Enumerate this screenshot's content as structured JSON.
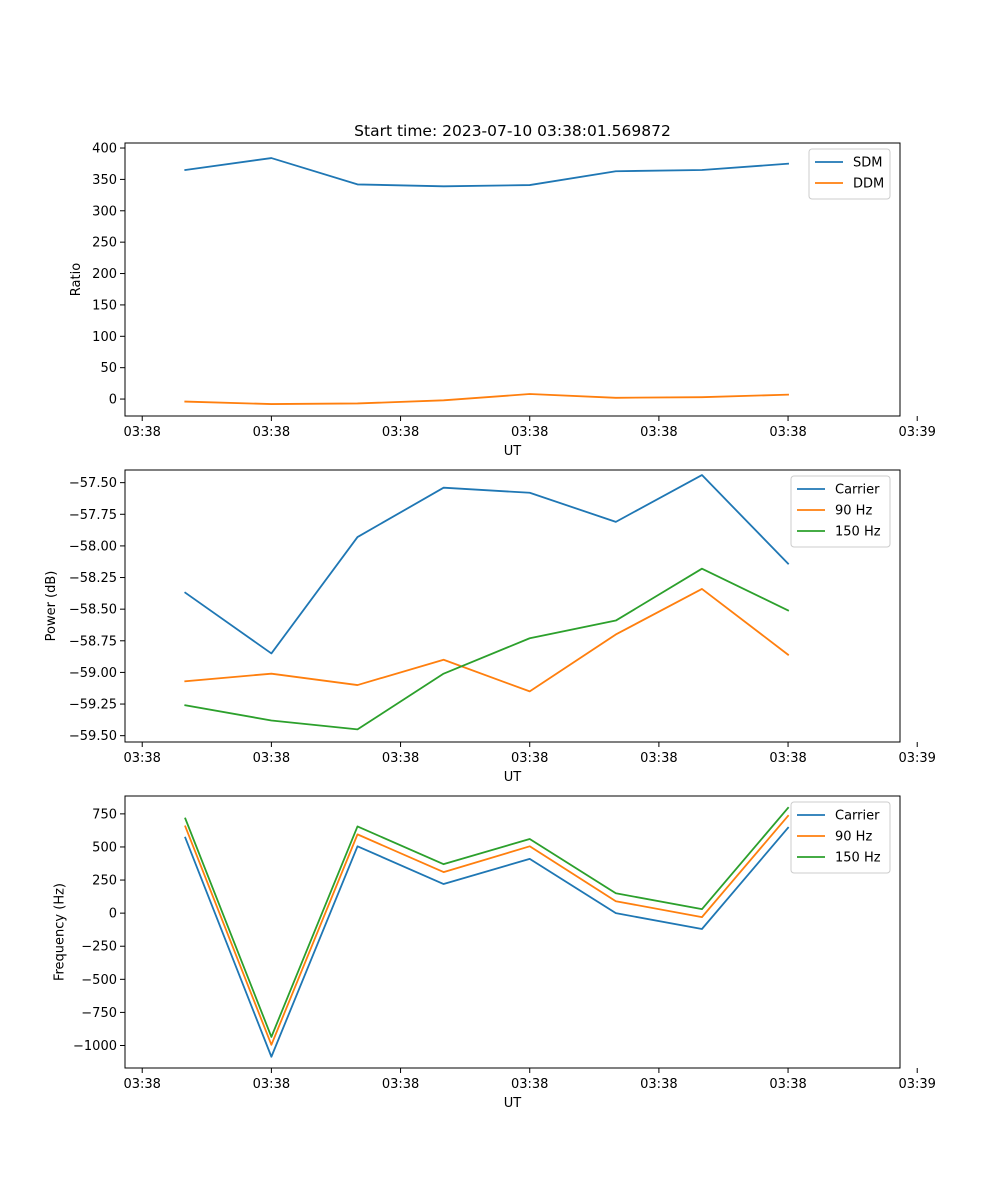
{
  "colors": {
    "blue": "#1f77b4",
    "orange": "#ff7f0e",
    "green": "#2ca02c"
  },
  "chart_data": [
    {
      "type": "line",
      "title": "Start time: 2023-07-10 03:38:01.569872",
      "xlabel": "UT",
      "ylabel": "Ratio",
      "x": [
        1,
        2,
        3,
        4,
        5,
        6,
        7,
        8
      ],
      "xlim": [
        0.3,
        9.3
      ],
      "xticks": [
        0.5,
        2,
        3.5,
        5,
        6.5,
        8,
        9.5
      ],
      "xtick_labels": [
        "03:38",
        "03:38",
        "03:38",
        "03:38",
        "03:38",
        "03:38",
        "03:39"
      ],
      "ylim": [
        -27,
        408
      ],
      "yticks": [
        0,
        50,
        100,
        150,
        200,
        250,
        300,
        350,
        400
      ],
      "ytick_labels": [
        "0",
        "50",
        "100",
        "150",
        "200",
        "250",
        "300",
        "350",
        "400"
      ],
      "legend_position": "top-right",
      "series": [
        {
          "name": "SDM",
          "color": "#1f77b4",
          "values": [
            365,
            384,
            342,
            339,
            341,
            363,
            365,
            375
          ]
        },
        {
          "name": "DDM",
          "color": "#ff7f0e",
          "values": [
            -4,
            -8,
            -7,
            -2,
            8,
            2,
            3,
            7
          ]
        }
      ]
    },
    {
      "type": "line",
      "title": "",
      "xlabel": "UT",
      "ylabel": "Power (dB)",
      "x": [
        1,
        2,
        3,
        4,
        5,
        6,
        7,
        8
      ],
      "xlim": [
        0.3,
        9.3
      ],
      "xticks": [
        0.5,
        2,
        3.5,
        5,
        6.5,
        8,
        9.5
      ],
      "xtick_labels": [
        "03:38",
        "03:38",
        "03:38",
        "03:38",
        "03:38",
        "03:38",
        "03:39"
      ],
      "ylim": [
        -59.55,
        -57.4
      ],
      "yticks": [
        -59.5,
        -59.25,
        -59.0,
        -58.75,
        -58.5,
        -58.25,
        -58.0,
        -57.75,
        -57.5
      ],
      "ytick_labels": [
        "−59.50",
        "−59.25",
        "−59.00",
        "−58.75",
        "−58.50",
        "−58.25",
        "−58.00",
        "−57.75",
        "−57.50"
      ],
      "legend_position": "top-right",
      "series": [
        {
          "name": "Carrier",
          "color": "#1f77b4",
          "values": [
            -58.37,
            -58.85,
            -57.93,
            -57.54,
            -57.58,
            -57.81,
            -57.44,
            -58.14
          ]
        },
        {
          "name": "90 Hz",
          "color": "#ff7f0e",
          "values": [
            -59.07,
            -59.01,
            -59.1,
            -58.9,
            -59.15,
            -58.7,
            -58.34,
            -58.86
          ]
        },
        {
          "name": "150 Hz",
          "color": "#2ca02c",
          "values": [
            -59.26,
            -59.38,
            -59.45,
            -59.01,
            -58.73,
            -58.59,
            -58.18,
            -58.51
          ]
        }
      ]
    },
    {
      "type": "line",
      "title": "",
      "xlabel": "UT",
      "ylabel": "Frequency (Hz)",
      "x": [
        1,
        2,
        3,
        4,
        5,
        6,
        7,
        8
      ],
      "xlim": [
        0.3,
        9.3
      ],
      "xticks": [
        0.5,
        2,
        3.5,
        5,
        6.5,
        8,
        9.5
      ],
      "xtick_labels": [
        "03:38",
        "03:38",
        "03:38",
        "03:38",
        "03:38",
        "03:38",
        "03:39"
      ],
      "ylim": [
        -1170,
        885
      ],
      "yticks": [
        -1000,
        -750,
        -500,
        -250,
        0,
        250,
        500,
        750
      ],
      "ytick_labels": [
        "−1000",
        "−750",
        "−500",
        "−250",
        "0",
        "250",
        "500",
        "750"
      ],
      "legend_position": "top-right",
      "series": [
        {
          "name": "Carrier",
          "color": "#1f77b4",
          "values": [
            570,
            -1085,
            505,
            220,
            410,
            0,
            -120,
            645
          ]
        },
        {
          "name": "90 Hz",
          "color": "#ff7f0e",
          "values": [
            655,
            -995,
            595,
            310,
            505,
            90,
            -30,
            735
          ]
        },
        {
          "name": "150 Hz",
          "color": "#2ca02c",
          "values": [
            715,
            -935,
            655,
            370,
            560,
            150,
            30,
            795
          ]
        }
      ]
    }
  ]
}
